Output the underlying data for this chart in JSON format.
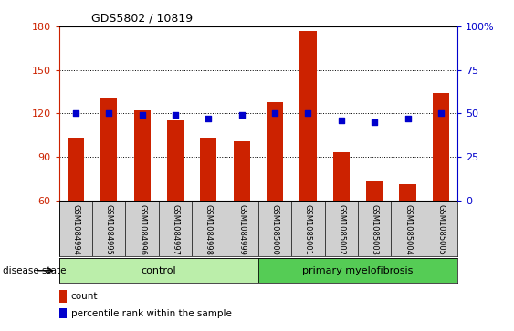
{
  "title": "GDS5802 / 10819",
  "samples": [
    "GSM1084994",
    "GSM1084995",
    "GSM1084996",
    "GSM1084997",
    "GSM1084998",
    "GSM1084999",
    "GSM1085000",
    "GSM1085001",
    "GSM1085002",
    "GSM1085003",
    "GSM1085004",
    "GSM1085005"
  ],
  "counts": [
    103,
    131,
    122,
    115,
    103,
    101,
    128,
    177,
    93,
    73,
    71,
    134
  ],
  "percentiles": [
    50,
    50,
    49,
    49,
    47,
    49,
    50,
    50,
    46,
    45,
    47,
    50
  ],
  "control_count": 6,
  "ylim_left": [
    60,
    180
  ],
  "ylim_right": [
    0,
    100
  ],
  "yticks_left": [
    60,
    90,
    120,
    150,
    180
  ],
  "yticks_right": [
    0,
    25,
    50,
    75,
    100
  ],
  "bar_color": "#cc2200",
  "dot_color": "#0000cc",
  "control_color": "#bbeeaa",
  "myelofibrosis_color": "#55cc55",
  "bar_width": 0.5,
  "disease_label": "disease state",
  "control_label": "control",
  "myelofibrosis_label": "primary myelofibrosis",
  "legend_count": "count",
  "legend_percentile": "percentile rank within the sample",
  "tick_area_color": "#d0d0d0"
}
